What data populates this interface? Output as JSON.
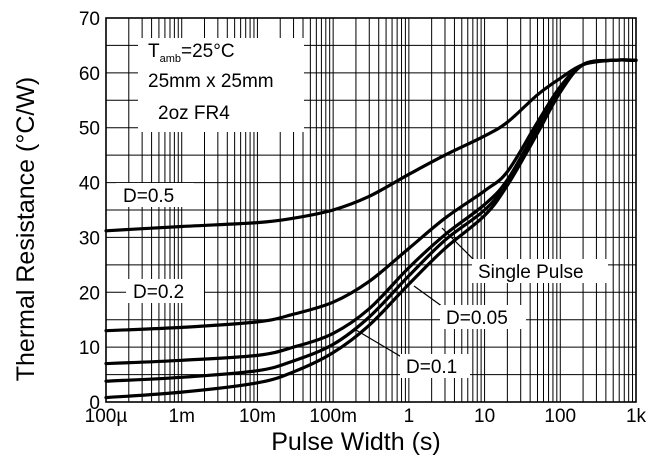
{
  "chart_data": {
    "type": "line",
    "xlabel": "Pulse Width (s)",
    "ylabel": "Thermal Resistance (°C/W)",
    "x_scale": "log",
    "xlim": [
      0.0001,
      1000
    ],
    "ylim": [
      0,
      70
    ],
    "x_ticks": [
      {
        "value": 0.0001,
        "label": "100µ"
      },
      {
        "value": 0.001,
        "label": "1m"
      },
      {
        "value": 0.01,
        "label": "10m"
      },
      {
        "value": 0.1,
        "label": "100m"
      },
      {
        "value": 1,
        "label": "1"
      },
      {
        "value": 10,
        "label": "10"
      },
      {
        "value": 100,
        "label": "100"
      },
      {
        "value": 1000,
        "label": "1k"
      }
    ],
    "y_ticks": [
      0,
      10,
      20,
      30,
      40,
      50,
      60,
      70
    ],
    "grid": true,
    "conditions": {
      "line1_base": "T",
      "line1_sub": "amb",
      "line1_rest": "=25°C",
      "line2": "25mm x 25mm",
      "line3": "2oz FR4"
    },
    "series": [
      {
        "name": "D=0.5",
        "points": [
          [
            0.0001,
            31.2
          ],
          [
            0.001,
            32
          ],
          [
            0.01,
            32.7
          ],
          [
            0.03,
            33.5
          ],
          [
            0.1,
            35
          ],
          [
            0.3,
            37.5
          ],
          [
            1,
            41.5
          ],
          [
            3,
            45
          ],
          [
            10,
            48.5
          ],
          [
            20,
            51
          ],
          [
            50,
            56
          ],
          [
            100,
            59
          ],
          [
            200,
            61.5
          ],
          [
            500,
            62.3
          ],
          [
            1000,
            62.3
          ]
        ]
      },
      {
        "name": "D=0.2",
        "points": [
          [
            0.0001,
            13
          ],
          [
            0.001,
            13.6
          ],
          [
            0.01,
            14.6
          ],
          [
            0.03,
            16
          ],
          [
            0.1,
            18.2
          ],
          [
            0.3,
            22
          ],
          [
            1,
            28
          ],
          [
            3,
            33.5
          ],
          [
            10,
            38.5
          ],
          [
            20,
            42
          ],
          [
            50,
            51
          ],
          [
            100,
            57.5
          ],
          [
            200,
            61.5
          ],
          [
            500,
            62.3
          ],
          [
            1000,
            62.3
          ]
        ]
      },
      {
        "name": "D=0.1",
        "points": [
          [
            0.0001,
            7
          ],
          [
            0.001,
            7.6
          ],
          [
            0.01,
            8.5
          ],
          [
            0.03,
            10
          ],
          [
            0.1,
            12.5
          ],
          [
            0.3,
            17
          ],
          [
            1,
            24.5
          ],
          [
            3,
            30.5
          ],
          [
            10,
            36
          ],
          [
            20,
            40.5
          ],
          [
            50,
            50
          ],
          [
            100,
            57
          ],
          [
            200,
            61.5
          ],
          [
            500,
            62.3
          ],
          [
            1000,
            62.3
          ]
        ]
      },
      {
        "name": "D=0.05",
        "points": [
          [
            0.0001,
            3.8
          ],
          [
            0.001,
            4.5
          ],
          [
            0.01,
            5.7
          ],
          [
            0.03,
            7.5
          ],
          [
            0.1,
            10.5
          ],
          [
            0.3,
            15.5
          ],
          [
            1,
            23
          ],
          [
            3,
            29.5
          ],
          [
            10,
            35
          ],
          [
            20,
            40
          ],
          [
            50,
            49.5
          ],
          [
            100,
            57
          ],
          [
            200,
            61.5
          ],
          [
            500,
            62.3
          ],
          [
            1000,
            62.3
          ]
        ]
      },
      {
        "name": "Single Pulse",
        "points": [
          [
            0.0001,
            0.8
          ],
          [
            0.001,
            1.8
          ],
          [
            0.01,
            3.5
          ],
          [
            0.03,
            5.5
          ],
          [
            0.1,
            9
          ],
          [
            0.3,
            14
          ],
          [
            1,
            21.5
          ],
          [
            3,
            28
          ],
          [
            10,
            34
          ],
          [
            20,
            39.5
          ],
          [
            50,
            49
          ],
          [
            100,
            56.5
          ],
          [
            200,
            61.5
          ],
          [
            500,
            62.3
          ],
          [
            1000,
            62.3
          ]
        ]
      }
    ],
    "annotations": [
      {
        "text": "D=0.5",
        "series": "D=0.5"
      },
      {
        "text": "D=0.2",
        "series": "D=0.2"
      },
      {
        "text": "D=0.1",
        "series": "D=0.1"
      },
      {
        "text": "D=0.05",
        "series": "D=0.05"
      },
      {
        "text": "Single Pulse",
        "series": "Single Pulse"
      }
    ]
  }
}
